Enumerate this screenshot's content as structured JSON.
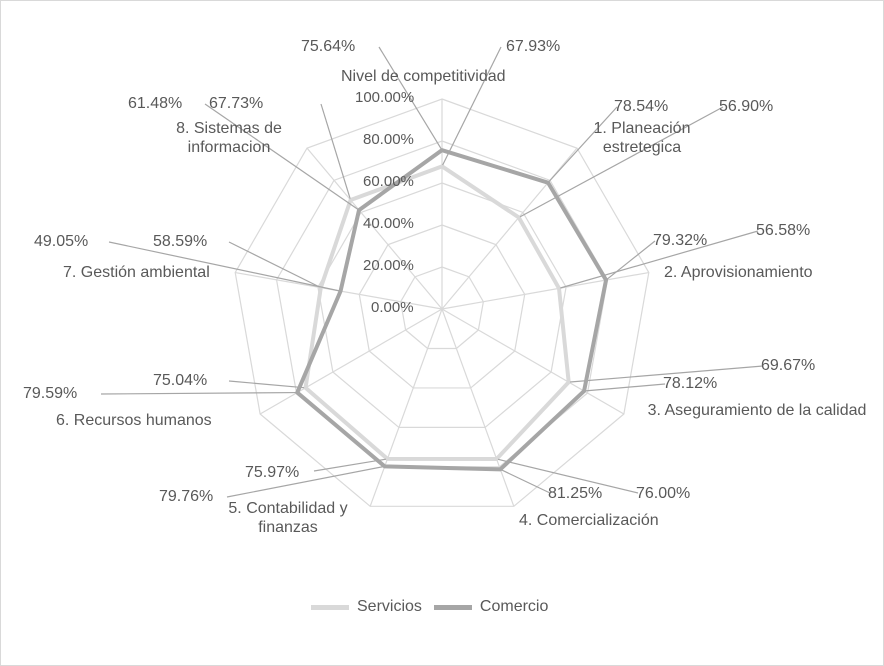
{
  "chart_data": {
    "type": "radar",
    "title": "",
    "categories": [
      "Nivel de competitividad",
      "1. Planeación estretegica",
      "2. Aprovisionamiento",
      "3. Aseguramiento de la calidad",
      "4. Comercialización",
      "5. Contabilidad y finanzas",
      "6. Recursos humanos",
      "7. Gestión ambiental",
      "8. Sistemas de informacion"
    ],
    "series": [
      {
        "name": "Servicios",
        "color": "#d9d9d9",
        "values": [
          67.93,
          56.9,
          56.58,
          69.67,
          76.0,
          75.97,
          75.04,
          58.59,
          67.73
        ],
        "labels": [
          "67.93%",
          "56.90%",
          "56.58%",
          "69.67%",
          "76.00%",
          "75.97%",
          "75.04%",
          "58.59%",
          "67.73%"
        ]
      },
      {
        "name": "Comercio",
        "color": "#a6a6a6",
        "values": [
          75.64,
          78.54,
          79.32,
          78.12,
          81.25,
          79.76,
          79.59,
          49.05,
          61.48
        ],
        "labels": [
          "75.64%",
          "78.54%",
          "79.32%",
          "78.12%",
          "81.25%",
          "79.76%",
          "79.59%",
          "49.05%",
          "61.48%"
        ]
      }
    ],
    "rlim": [
      0,
      100
    ],
    "ticks": [
      "0.00%",
      "20.00%",
      "40.00%",
      "60.00%",
      "80.00%",
      "100.00%"
    ],
    "grid": true,
    "legend": "bottom"
  }
}
